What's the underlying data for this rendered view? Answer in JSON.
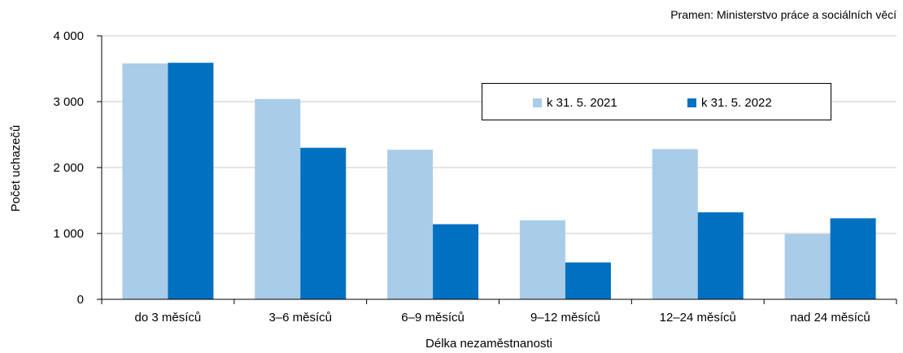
{
  "source_note": "Pramen: Ministerstvo práce a sociálních věcí",
  "colors": {
    "series1": "#a9cce8",
    "series2": "#0070c0",
    "grid": "#c8c8c8",
    "axis": "#000000"
  },
  "chart_data": {
    "type": "bar",
    "title": "",
    "xlabel": "Délka nezaměstnanosti",
    "ylabel": "Počet uchazečů",
    "ylim": [
      0,
      4000
    ],
    "yticks": [
      0,
      1000,
      2000,
      3000,
      4000
    ],
    "ytick_labels": [
      "0",
      "1 000",
      "2 000",
      "3 000",
      "4 000"
    ],
    "grid": true,
    "legend_position": "top-right",
    "categories": [
      "do 3 měsíců",
      "3–6 měsíců",
      "6–9 měsíců",
      "9–12 měsíců",
      "12–24 měsíců",
      "nad 24 měsíců"
    ],
    "series": [
      {
        "name": "k 31. 5. 2021",
        "values": [
          3580,
          3040,
          2270,
          1200,
          2280,
          990
        ]
      },
      {
        "name": "k 31. 5. 2022",
        "values": [
          3590,
          2300,
          1140,
          560,
          1320,
          1230
        ]
      }
    ]
  }
}
